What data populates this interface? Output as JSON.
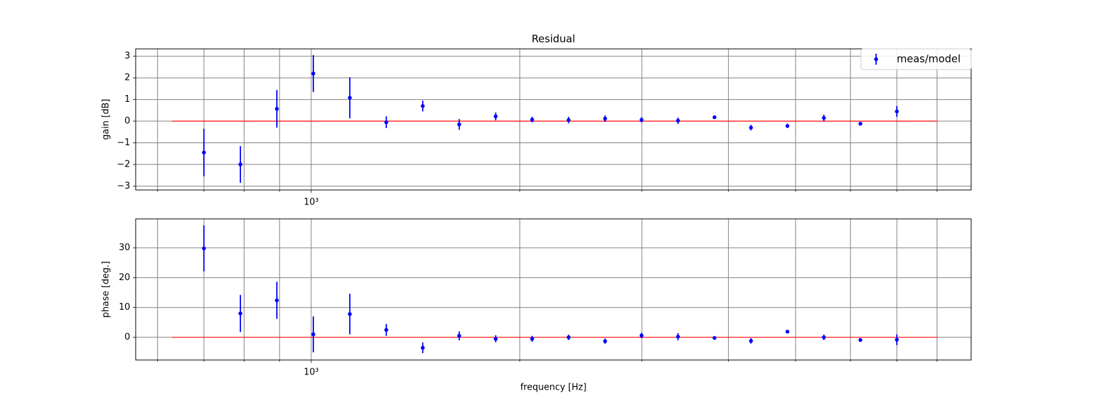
{
  "chart_data": [
    {
      "type": "errorbar",
      "title": "Residual",
      "y_label": "gain [dB]",
      "log_x": true,
      "grid": true,
      "legend": "upper right",
      "xlim": [
        558,
        8960
      ],
      "xticks": [
        {
          "value": 1000,
          "label": "10³"
        }
      ],
      "xminor_ticks": [
        600,
        700,
        800,
        900,
        2000,
        3000,
        4000,
        5000,
        6000,
        7000,
        8000
      ],
      "ylim": [
        -3.18,
        3.34
      ],
      "yticks": [
        {
          "value": -3,
          "label": "−3"
        },
        {
          "value": -2,
          "label": "−2"
        },
        {
          "value": -1,
          "label": "−1"
        },
        0,
        1,
        2,
        3
      ],
      "x": [
        700,
        790.2,
        892,
        1006.9,
        1136.7,
        1283.1,
        1448.4,
        1635,
        1845.7,
        2083.5,
        2351.9,
        2654.9,
        2996.9,
        3383,
        3818.9,
        4311,
        4866.3,
        5493.3,
        6201.1,
        7000
      ],
      "series": [
        {
          "name": "meas/model",
          "color": "#0000ff",
          "values": [
            -1.45,
            -2.0,
            0.57,
            2.2,
            1.08,
            -0.05,
            0.7,
            -0.15,
            0.22,
            0.07,
            0.05,
            0.12,
            0.06,
            0.02,
            0.18,
            -0.3,
            -0.22,
            0.15,
            -0.12,
            0.45
          ],
          "errors": [
            1.1,
            0.85,
            0.87,
            0.85,
            0.95,
            0.27,
            0.25,
            0.25,
            0.18,
            0.13,
            0.15,
            0.15,
            0.12,
            0.15,
            0.07,
            0.13,
            0.1,
            0.15,
            0.06,
            0.25
          ]
        }
      ],
      "reference": {
        "x": [
          630,
          8000
        ],
        "values": [
          0,
          0
        ],
        "color": "#ff0000"
      }
    },
    {
      "type": "errorbar",
      "y_label": "phase [deg.]",
      "x_label": "frequency [Hz]",
      "log_x": true,
      "grid": true,
      "xlim": [
        558,
        8960
      ],
      "xticks": [
        {
          "value": 1000,
          "label": "10³"
        }
      ],
      "xminor_ticks": [
        600,
        700,
        800,
        900,
        2000,
        3000,
        4000,
        5000,
        6000,
        7000,
        8000
      ],
      "ylim": [
        -7.6,
        39.7
      ],
      "yticks": [
        0,
        10,
        20,
        30
      ],
      "x": [
        700,
        790.2,
        892,
        1006.9,
        1136.7,
        1283.1,
        1448.4,
        1635,
        1845.7,
        2083.5,
        2351.9,
        2654.9,
        2996.9,
        3383,
        3818.9,
        4311,
        4866.3,
        5493.3,
        6201.1,
        7000
      ],
      "series": [
        {
          "color": "#0000ff",
          "values": [
            29.8,
            8.0,
            12.4,
            1.0,
            7.8,
            2.5,
            -3.5,
            0.5,
            -0.5,
            -0.5,
            0.0,
            -1.3,
            0.6,
            0.2,
            -0.2,
            -1.2,
            1.9,
            0.0,
            -0.9,
            -0.8
          ],
          "errors": [
            7.7,
            6.2,
            6.2,
            6.0,
            6.8,
            2.0,
            1.8,
            1.5,
            1.2,
            1.0,
            0.9,
            0.9,
            0.9,
            1.2,
            0.5,
            0.9,
            0.5,
            0.9,
            0.5,
            1.8
          ]
        }
      ],
      "reference": {
        "x": [
          630,
          8000
        ],
        "values": [
          0,
          0
        ],
        "color": "#ff0000"
      }
    }
  ]
}
